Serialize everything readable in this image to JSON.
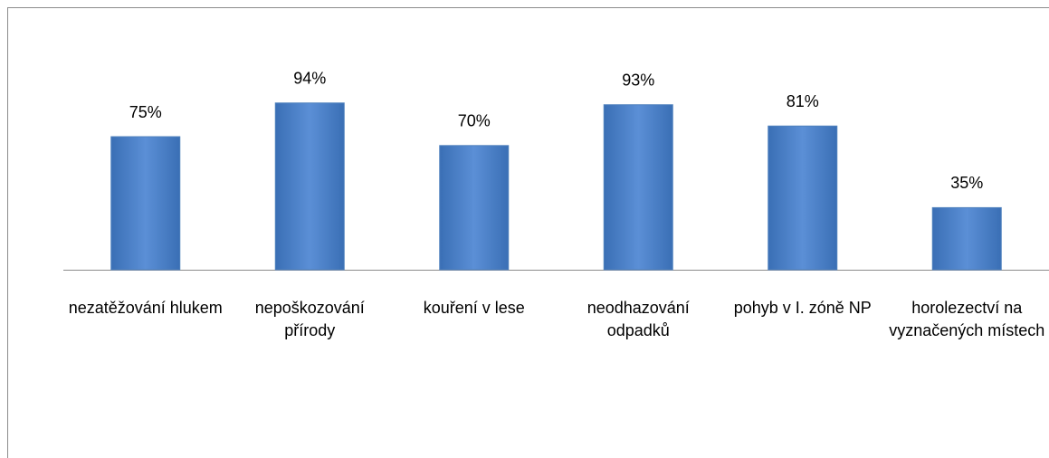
{
  "chart_data": {
    "type": "bar",
    "categories": [
      "nezatěžování hlukem",
      "nepoškozování přírody",
      "kouření v lese",
      "neodhazování odpadků",
      "pohyb v I. zóně NP",
      "horolezectví na vyznačených místech"
    ],
    "values": [
      75,
      94,
      70,
      93,
      81,
      35
    ],
    "value_labels": [
      "75%",
      "94%",
      "70%",
      "93%",
      "81%",
      "35%"
    ],
    "color": "#4f81bd"
  }
}
